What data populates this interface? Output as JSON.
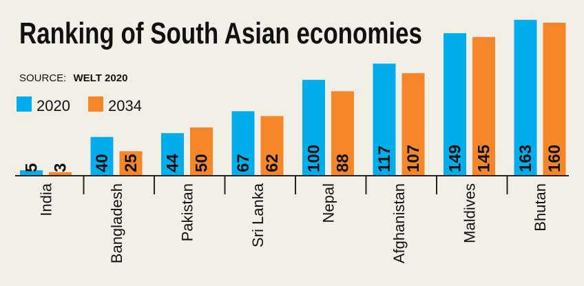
{
  "chart_data": {
    "type": "bar",
    "title": "Ranking of South Asian economies",
    "source_label": "SOURCE:",
    "source_name": "WELT 2020",
    "categories": [
      "India",
      "Bangladesh",
      "Pakistan",
      "Sri Lanka",
      "Nepal",
      "Afghanistan",
      "Maldives",
      "Bhutan"
    ],
    "series": [
      {
        "name": "2020",
        "color": "#00adeb",
        "values": [
          5,
          40,
          44,
          67,
          100,
          117,
          149,
          163
        ]
      },
      {
        "name": "2034",
        "color": "#f5862a",
        "values": [
          3,
          25,
          50,
          62,
          88,
          107,
          145,
          160
        ]
      }
    ],
    "ylim": [
      0,
      165
    ],
    "legend_position": "top-left",
    "grid": false,
    "value_labels": true
  }
}
